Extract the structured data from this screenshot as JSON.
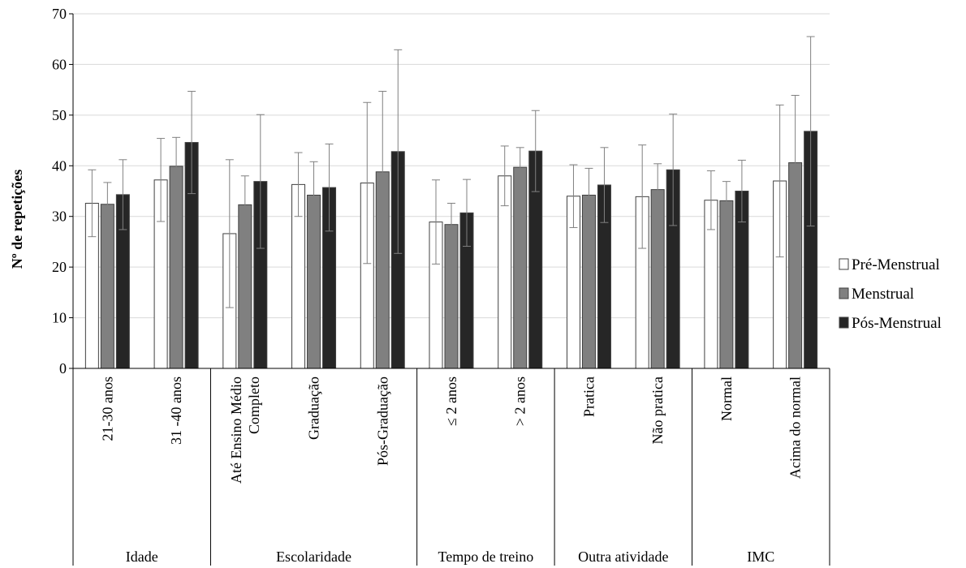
{
  "chart_data": {
    "type": "bar",
    "title": "",
    "xlabel": "",
    "ylabel": "Nº de repetições",
    "ylim": [
      0,
      70
    ],
    "yticks": [
      0,
      10,
      20,
      30,
      40,
      50,
      60,
      70
    ],
    "grid": true,
    "legend_position": "right",
    "groups": [
      {
        "label": "Idade",
        "categories": [
          "21-30 anos",
          "31 -40 anos"
        ]
      },
      {
        "label": "Escolaridade",
        "categories": [
          "Até Ensino Médio Completo",
          "Graduação",
          "Pós-Graduação"
        ]
      },
      {
        "label": "Tempo de treino",
        "categories": [
          "≤ 2 anos",
          "> 2 anos"
        ]
      },
      {
        "label": "Outra atividade",
        "categories": [
          "Pratica",
          "Não pratica"
        ]
      },
      {
        "label": "IMC",
        "categories": [
          "Normal",
          "Acima do normal"
        ]
      }
    ],
    "category_label_lines": [
      [
        "21-30 anos"
      ],
      [
        "31 -40 anos"
      ],
      [
        "Até Ensino Médio",
        "Completo"
      ],
      [
        "Graduação"
      ],
      [
        "Pós-Graduação"
      ],
      [
        "≤ 2 anos"
      ],
      [
        "> 2 anos"
      ],
      [
        "Pratica"
      ],
      [
        "Não pratica"
      ],
      [
        "Normal"
      ],
      [
        "Acima do normal"
      ]
    ],
    "series": [
      {
        "name": "Pré-Menstrual",
        "color": "#ffffff",
        "values": [
          32.6,
          37.2,
          26.6,
          36.3,
          36.6,
          28.9,
          38.0,
          34.0,
          33.9,
          33.2,
          37.0
        ],
        "error": [
          6.6,
          8.2,
          14.6,
          6.3,
          15.9,
          8.3,
          5.9,
          6.2,
          10.2,
          5.8,
          15.0
        ]
      },
      {
        "name": "Menstrual",
        "color": "#808080",
        "values": [
          32.4,
          39.9,
          32.3,
          34.2,
          38.8,
          28.4,
          39.7,
          34.2,
          35.3,
          33.1,
          40.6
        ],
        "error": [
          4.3,
          5.7,
          5.7,
          6.6,
          15.9,
          4.2,
          3.9,
          5.3,
          5.1,
          3.8,
          13.3
        ]
      },
      {
        "name": "Pós-Menstrual",
        "color": "#262626",
        "values": [
          34.3,
          44.6,
          36.9,
          35.7,
          42.8,
          30.7,
          42.9,
          36.2,
          39.2,
          35.0,
          46.8
        ],
        "error": [
          6.9,
          10.1,
          13.2,
          8.6,
          20.1,
          6.6,
          8.0,
          7.4,
          11.0,
          6.1,
          18.7
        ]
      }
    ]
  }
}
